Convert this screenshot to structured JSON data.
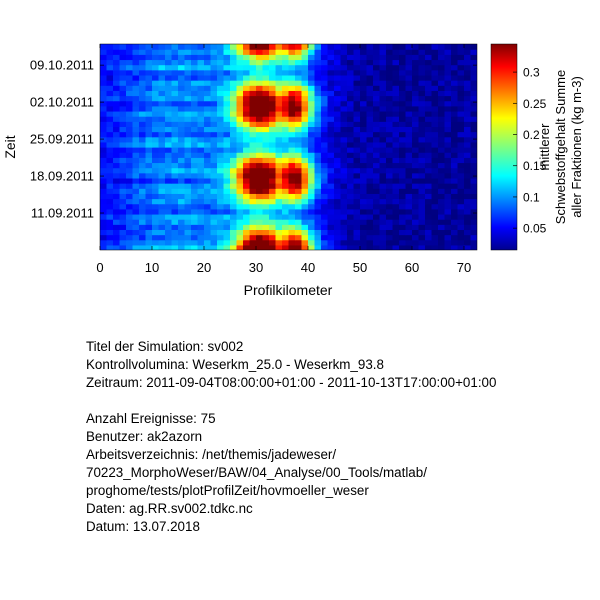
{
  "chart_data": {
    "type": "heatmap",
    "xlabel": "Profilkilometer",
    "ylabel": "Zeit",
    "xlim": [
      0,
      72.5
    ],
    "x_ticks": [
      0,
      10,
      20,
      30,
      40,
      50,
      60,
      70
    ],
    "y_range": [
      "2011-09-04",
      "2011-10-13"
    ],
    "y_ticks": [
      "11.09.2011",
      "18.09.2011",
      "25.09.2011",
      "02.10.2011",
      "09.10.2011"
    ],
    "colorbar": {
      "label": [
        "mittlerer",
        "Schwebstoffgehalt Summe",
        "aller Fraktionen (kg m-3)"
      ],
      "range": [
        0.015,
        0.345
      ],
      "ticks": [
        0.05,
        0.1,
        0.15,
        0.2,
        0.25,
        0.3
      ],
      "tick_labels": [
        "0.05",
        "0.1",
        "0.15",
        "0.2",
        "0.25",
        "0.3"
      ],
      "colormap": "jet"
    },
    "description_values": {
      "peak_km": [
        27,
        40
      ],
      "peak_max": 0.33,
      "background": 0.02
    }
  },
  "info": {
    "title_line": "Titel der Simulation: sv002",
    "volumes_line": "Kontrollvolumina: Weserkm_25.0 - Weserkm_93.8",
    "period_line": "Zeitraum: 2011-09-04T08:00:00+01:00 - 2011-10-13T17:00:00+01:00",
    "events_line": "Anzahl Ereignisse: 75",
    "user_line": "Benutzer: ak2azorn",
    "dir_line1": "Arbeitsverzeichnis: /net/themis/jadeweser/",
    "dir_line2": "70223_MorphoWeser/BAW/04_Analyse/00_Tools/matlab/",
    "dir_line3": "proghome/tests/plotProfilZeit/hovmoeller_weser",
    "data_line": "Daten: ag.RR.sv002.tdkc.nc",
    "date_line": "Datum: 13.07.2018"
  }
}
